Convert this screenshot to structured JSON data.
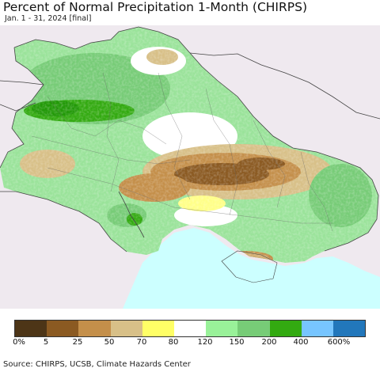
{
  "header": {
    "title": "Percent of Normal Precipitation 1-Month (CHIRPS)",
    "subtitle": "Jan. 1 - 31, 2024 [final]"
  },
  "legend": {
    "colors": [
      "#4d3517",
      "#8b5a22",
      "#c48f4a",
      "#d8c088",
      "#ffff66",
      "#ffffff",
      "#99f199",
      "#77cc77",
      "#33aa11",
      "#77c5ff",
      "#2277bb"
    ],
    "labels": [
      "0%",
      "5",
      "25",
      "50",
      "70",
      "80",
      "120",
      "150",
      "200",
      "400",
      "600%"
    ]
  },
  "map": {
    "background_color": "#efe9ef",
    "sea_color": "#ccffff"
  },
  "footer": {
    "source": "Source: CHIRPS, UCSB, Climate Hazards Center"
  }
}
